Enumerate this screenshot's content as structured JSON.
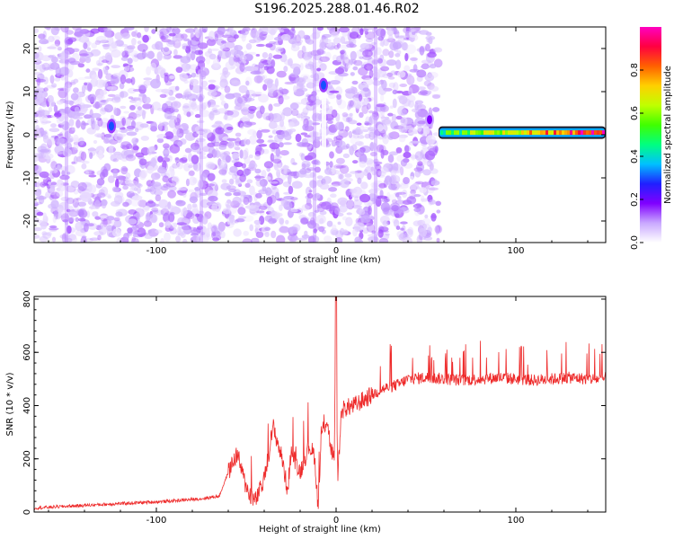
{
  "chart_data": [
    {
      "type": "heatmap",
      "title": "S196.2025.288.01.46.R02",
      "xlabel": "Height of straight line (km)",
      "ylabel": "Frequency (Hz)",
      "xlim": [
        -168,
        150
      ],
      "ylim": [
        -25,
        25
      ],
      "xticks": [
        -100,
        0,
        100
      ],
      "yticks": [
        -20,
        -10,
        0,
        10,
        20
      ],
      "colorbar": {
        "label": "Normalized spectral amplitude",
        "range": [
          0,
          1
        ],
        "ticks": [
          0.0,
          0.2,
          0.4,
          0.6,
          0.8
        ],
        "colors": [
          "#ffffff",
          "#c9a8ff",
          "#8000ff",
          "#2020ff",
          "#00c0ff",
          "#00ff80",
          "#40ff00",
          "#c0ff00",
          "#ffd000",
          "#ff6000",
          "#ff0040",
          "#ff00c0"
        ]
      },
      "features": {
        "noise_region_x": [
          -168,
          57
        ],
        "noise_amplitude": 0.12,
        "hot_spots": [
          {
            "x": -125,
            "y": 2,
            "amplitude": 0.3
          },
          {
            "x": -7,
            "y": 11.5,
            "amplitude": 0.3
          },
          {
            "x": 52,
            "y": 3.5,
            "amplitude": 0.18
          }
        ],
        "carrier": {
          "x_range": [
            57,
            150
          ],
          "y": 0.5,
          "amplitude": 0.9
        }
      }
    },
    {
      "type": "line",
      "xlabel": "Height of straight line (km)",
      "ylabel": "SNR (10 * v/v)",
      "xlim": [
        -168,
        150
      ],
      "ylim": [
        0,
        810
      ],
      "xticks": [
        -100,
        0,
        100
      ],
      "yticks": [
        0,
        200,
        400,
        600,
        800
      ],
      "line_color": "#ee2b2b",
      "series": [
        {
          "name": "SNR",
          "x": [
            -168,
            -155,
            -140,
            -125,
            -110,
            -95,
            -85,
            -75,
            -65,
            -60,
            -55,
            -50,
            -45,
            -40,
            -35,
            -30,
            -27,
            -25,
            -20,
            -15,
            -12,
            -10,
            -8,
            -5,
            -3,
            -1,
            0,
            0.5,
            1,
            3,
            5,
            10,
            15,
            20,
            25,
            30,
            35,
            40,
            50,
            60,
            70,
            80,
            90,
            100,
            110,
            120,
            130,
            140,
            150
          ],
          "y": [
            15,
            20,
            25,
            30,
            35,
            40,
            45,
            50,
            60,
            150,
            220,
            90,
            40,
            120,
            320,
            200,
            80,
            230,
            150,
            250,
            210,
            20,
            300,
            350,
            240,
            200,
            810,
            300,
            140,
            380,
            390,
            400,
            420,
            440,
            460,
            470,
            480,
            500,
            505,
            500,
            495,
            500,
            505,
            500,
            495,
            500,
            505,
            500,
            500
          ]
        }
      ]
    }
  ]
}
